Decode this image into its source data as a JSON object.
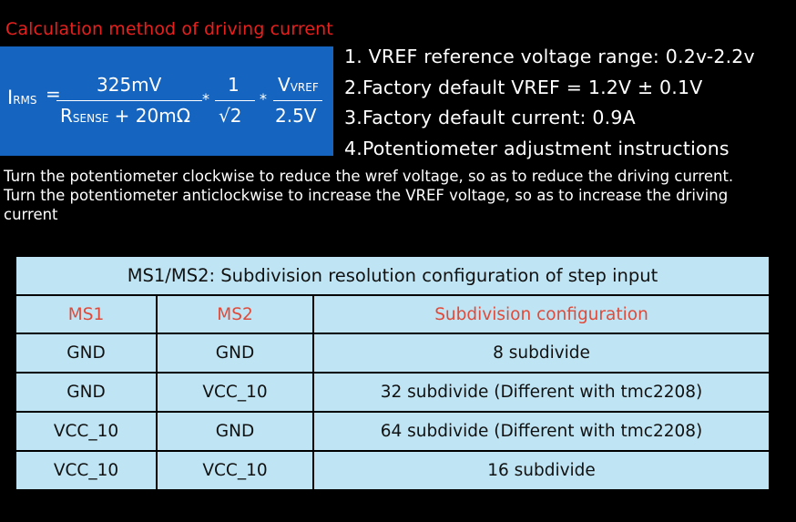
{
  "title": "Calculation method of driving current",
  "formula": {
    "lhs_main": "I",
    "lhs_sub": "RMS",
    "equals": "=",
    "numerator": "325mV",
    "denominator_main": "R",
    "denominator_sub": "SENSE",
    "denominator_rest": "+ 20mΩ",
    "mult1": "*",
    "one": "1",
    "sqrt2": "√2",
    "mult2": "*",
    "vref_main": "V",
    "vref_sub": "VREF",
    "divisor": "2.5V"
  },
  "notes": [
    "1. VREF reference voltage range: 0.2v-2.2v",
    "2.Factory default VREF = 1.2V ± 0.1V",
    "3.Factory default current: 0.9A",
    "4.Potentiometer adjustment instructions"
  ],
  "description": [
    "Turn the potentiometer clockwise to reduce the wref voltage, so as to reduce the driving current.",
    "Turn the potentiometer anticlockwise to increase the VREF voltage, so as to increase the driving",
    "current"
  ],
  "table": {
    "title": "MS1/MS2: Subdivision resolution configuration of step input",
    "headers": [
      "MS1",
      "MS2",
      "Subdivision configuration"
    ],
    "rows": [
      [
        "GND",
        "GND",
        "8 subdivide"
      ],
      [
        "GND",
        "VCC_10",
        "32 subdivide  (Different with tmc2208)"
      ],
      [
        "VCC_10",
        "GND",
        "64 subdivide   (Different with tmc2208)"
      ],
      [
        "VCC_10",
        "VCC_10",
        "16 subdivide"
      ]
    ]
  }
}
